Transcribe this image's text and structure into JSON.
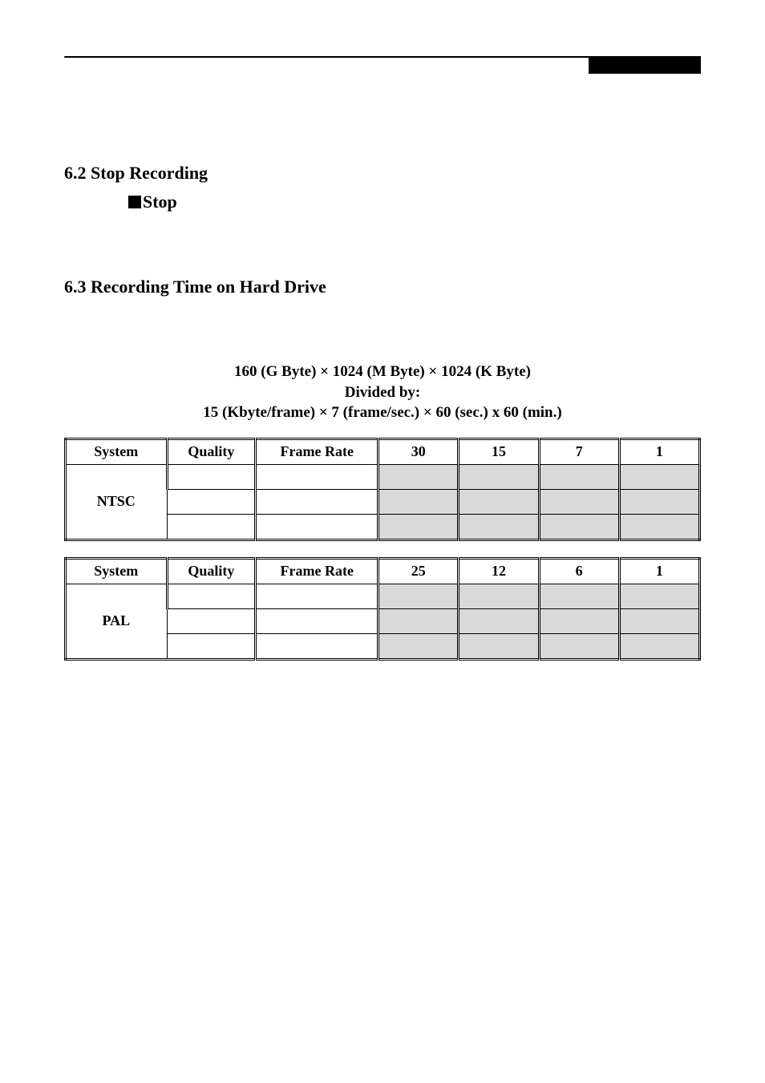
{
  "header_line_present": true,
  "section_62": {
    "heading": "6.2 Stop Recording",
    "stop_label": "Stop"
  },
  "section_63": {
    "heading": "6.3 Recording Time on Hard Drive",
    "formula_line1": "160 (G Byte) × 1024 (M Byte) × 1024 (K Byte)",
    "formula_line2": "Divided by:",
    "formula_line3": "15 (Kbyte/frame) × 7 (frame/sec.) × 60 (sec.) x 60 (min.)"
  },
  "table_ntsc": {
    "headers": {
      "system": "System",
      "quality": "Quality",
      "frame_rate": "Frame Rate",
      "c1": "30",
      "c2": "15",
      "c3": "7",
      "c4": "1"
    },
    "system_label": "NTSC",
    "row_count": 3,
    "grey_color": "#d9d9d9"
  },
  "table_pal": {
    "headers": {
      "system": "System",
      "quality": "Quality",
      "frame_rate": "Frame Rate",
      "c1": "25",
      "c2": "12",
      "c3": "6",
      "c4": "1"
    },
    "system_label": "PAL",
    "row_count": 3,
    "grey_color": "#d9d9d9"
  }
}
